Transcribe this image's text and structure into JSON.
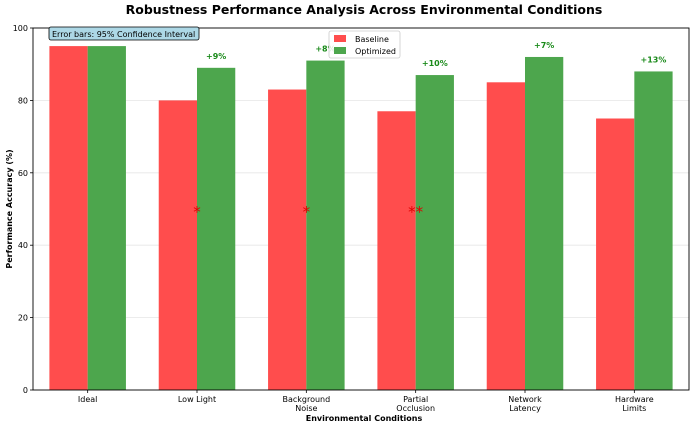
{
  "chart_data": {
    "type": "bar",
    "title": "Robustness Performance Analysis Across Environmental Conditions",
    "xlabel": "Environmental Conditions",
    "ylabel": "Performance Accuracy (%)",
    "ylim": [
      0,
      100
    ],
    "yticks": [
      0,
      20,
      40,
      60,
      80,
      100
    ],
    "grid": true,
    "legend_position": "top-center",
    "categories": [
      [
        "Ideal"
      ],
      [
        "Low Light"
      ],
      [
        "Background",
        "Noise"
      ],
      [
        "Partial",
        "Occlusion"
      ],
      [
        "Network",
        "Latency"
      ],
      [
        "Hardware",
        "Limits"
      ]
    ],
    "series": [
      {
        "name": "Baseline",
        "color": "#ff4d4d",
        "values": [
          95,
          80,
          83,
          77,
          85,
          75
        ]
      },
      {
        "name": "Optimized",
        "color": "#4da64d",
        "values": [
          95,
          89,
          91,
          87,
          92,
          88
        ]
      }
    ],
    "improvement_labels": [
      "",
      "+9%",
      "+8%",
      "+10%",
      "+7%",
      "+13%"
    ],
    "improvement_color": "#1a8a1a",
    "significance_markers": [
      "",
      "*",
      "*",
      "**",
      "",
      ""
    ],
    "significance_color": "#e00000",
    "significance_y": 50,
    "annotation": "Error bars: 95% Confidence Interval",
    "annotation_bg": "#add8e6"
  }
}
